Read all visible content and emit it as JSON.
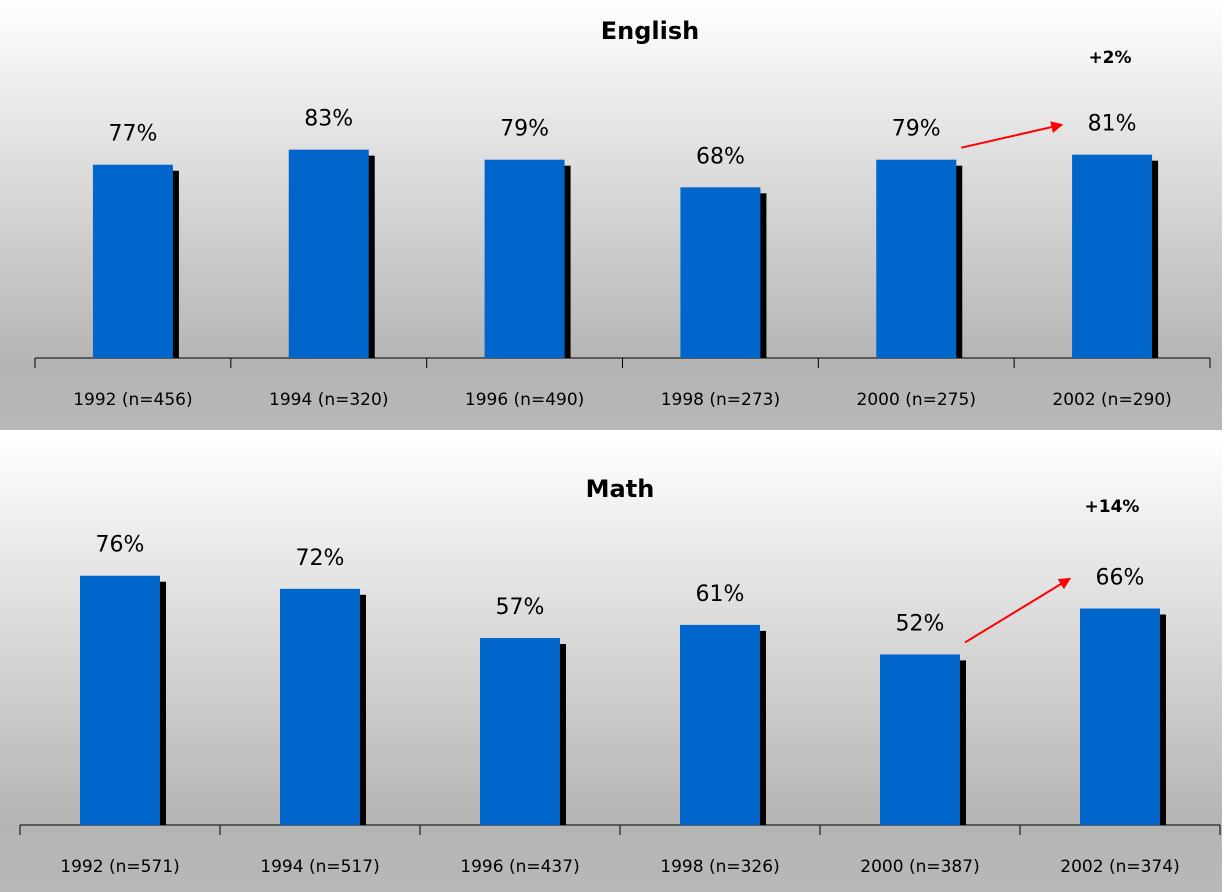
{
  "chart_data": [
    {
      "type": "bar",
      "title": "English",
      "categories": [
        "1992 (n=456)",
        "1994 (n=320)",
        "1996 (n=490)",
        "1998 (n=273)",
        "2000 (n=275)",
        "2002 (n=290)"
      ],
      "values": [
        77,
        83,
        79,
        68,
        79,
        81
      ],
      "value_labels": [
        "77%",
        "83%",
        "79%",
        "68%",
        "79%",
        "81%"
      ],
      "color": "#0066cc",
      "ylim": [
        0,
        100
      ],
      "annotation": "+2%"
    },
    {
      "type": "bar",
      "title": "Math",
      "categories": [
        "1992 (n=571)",
        "1994 (n=517)",
        "1996 (n=437)",
        "1998 (n=326)",
        "2000 (n=387)",
        "2002 (n=374)"
      ],
      "values": [
        76,
        72,
        57,
        61,
        52,
        66
      ],
      "value_labels": [
        "76%",
        "72%",
        "57%",
        "61%",
        "52%",
        "66%"
      ],
      "color": "#0066cc",
      "ylim": [
        0,
        100
      ],
      "annotation": "+14%"
    }
  ]
}
